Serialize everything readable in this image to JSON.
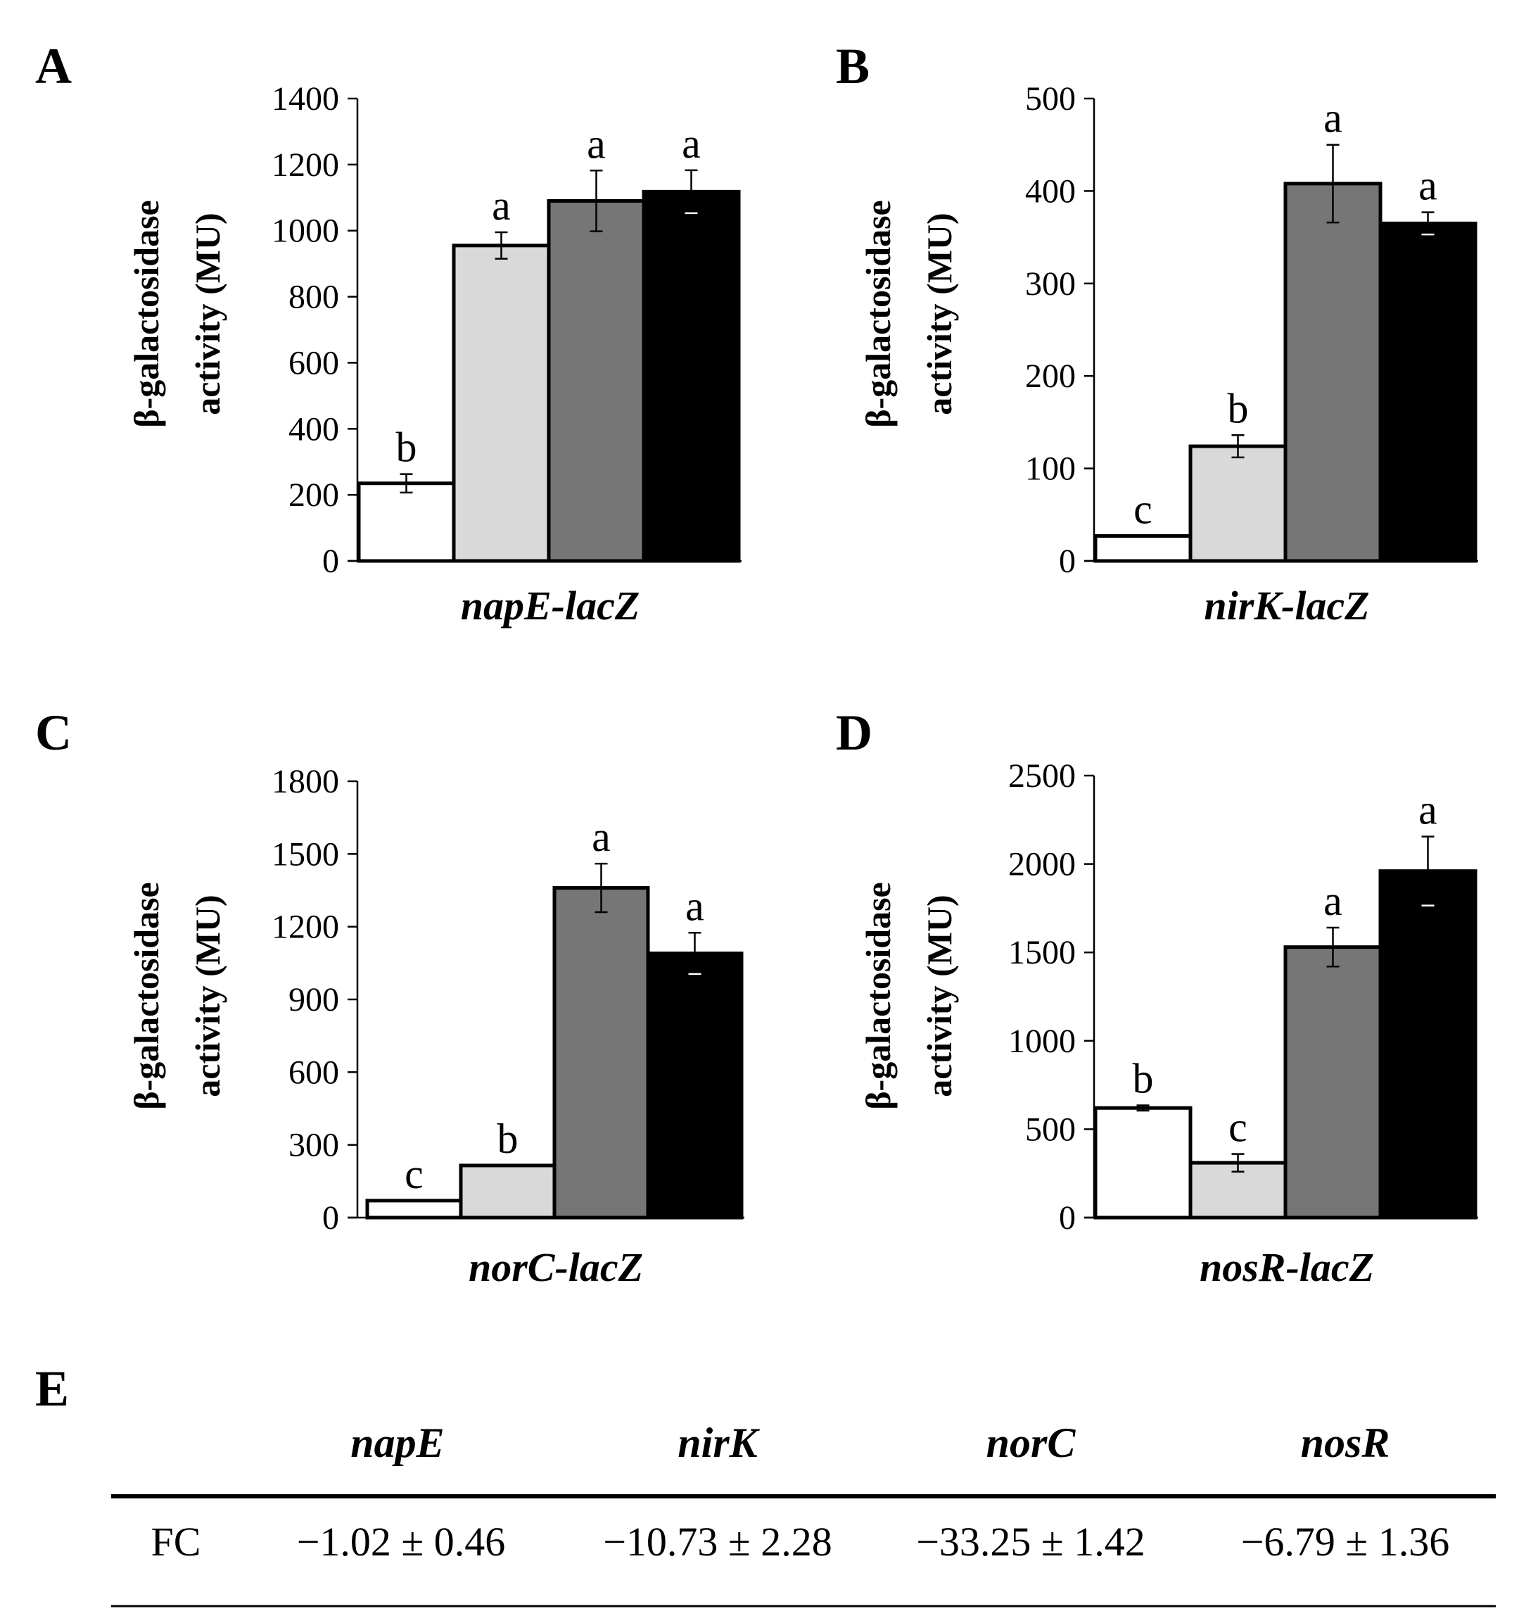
{
  "chart_data": [
    {
      "panel": "A",
      "type": "bar",
      "title": "",
      "xlabel": "napE-lacZ",
      "ylabel": [
        "β-galactosidase",
        "activity (MU)"
      ],
      "ylim": [
        0,
        1400
      ],
      "yticks": [
        0,
        200,
        400,
        600,
        800,
        1000,
        1200,
        1400
      ],
      "values": [
        235,
        955,
        1090,
        1118
      ],
      "errors": [
        28,
        40,
        92,
        65
      ],
      "sig": [
        "b",
        "a",
        "a",
        "a"
      ],
      "fills": [
        "#ffffff",
        "#d9d9d9",
        "#767676",
        "#000000"
      ],
      "grid": false
    },
    {
      "panel": "B",
      "type": "bar",
      "title": "",
      "xlabel": "nirK-lacZ",
      "ylabel": [
        "β-galactosidase",
        "activity (MU)"
      ],
      "ylim": [
        0,
        500
      ],
      "yticks": [
        0,
        100,
        200,
        300,
        400,
        500
      ],
      "values": [
        27,
        124,
        408,
        365
      ],
      "errors": [
        0,
        12,
        42,
        12
      ],
      "sig": [
        "c",
        "b",
        "a",
        "a"
      ],
      "fills": [
        "#ffffff",
        "#d9d9d9",
        "#767676",
        "#000000"
      ],
      "grid": false
    },
    {
      "panel": "C",
      "type": "bar",
      "title": "",
      "xlabel": "norC-lacZ",
      "ylabel": [
        "β-galactosidase",
        "activity (MU)"
      ],
      "ylim": [
        0,
        1800
      ],
      "yticks": [
        0,
        300,
        600,
        900,
        1200,
        1500,
        1800
      ],
      "values": [
        70,
        215,
        1360,
        1090
      ],
      "errors": [
        0,
        0,
        100,
        85
      ],
      "sig": [
        "c",
        "b",
        "a",
        "a"
      ],
      "fills": [
        "#ffffff",
        "#d9d9d9",
        "#767676",
        "#000000"
      ],
      "grid": false
    },
    {
      "panel": "D",
      "type": "bar",
      "title": "",
      "xlabel": "nosR-lacZ",
      "ylabel": [
        "β-galactosidase",
        "activity (MU)"
      ],
      "ylim": [
        0,
        2500
      ],
      "yticks": [
        0,
        500,
        1000,
        1500,
        2000,
        2500
      ],
      "values": [
        620,
        310,
        1530,
        1960
      ],
      "errors": [
        15,
        50,
        110,
        195
      ],
      "sig": [
        "b",
        "c",
        "a",
        "a"
      ],
      "fills": [
        "#ffffff",
        "#d9d9d9",
        "#767676",
        "#000000"
      ],
      "grid": false
    }
  ],
  "table": {
    "panel": "E",
    "headers": [
      "napE",
      "nirK",
      "norC",
      "nosR"
    ],
    "row_label": "FC",
    "values": [
      "−1.02 ± 0.46",
      "−10.73 ± 2.28",
      "−33.25 ± 1.42",
      "−6.79 ± 1.36"
    ]
  }
}
